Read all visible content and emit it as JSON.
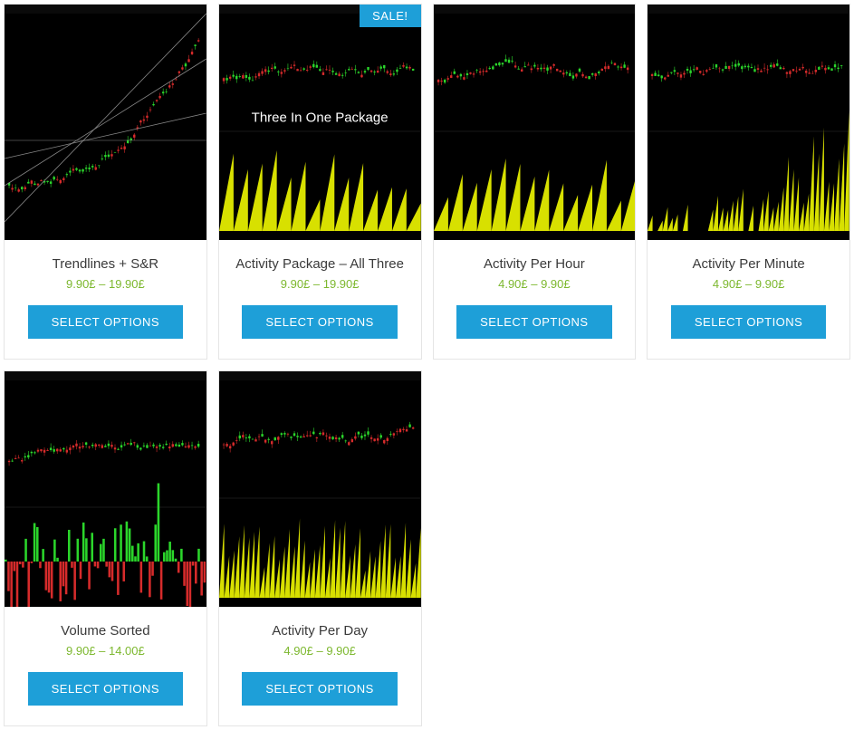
{
  "colors": {
    "accent": "#1e9fd8",
    "price": "#7db82f",
    "sale_bg": "#1e9fd8",
    "chart_bg": "#000000",
    "candle_up": "#2bd62b",
    "candle_down": "#d62b2b",
    "activity_fill": "#d8e000",
    "trendline": "#888888"
  },
  "button_label": "SELECT OPTIONS",
  "sale_label": "SALE!",
  "products": [
    {
      "title": "Trendlines + S&R",
      "price": "9.90£ – 19.90£",
      "thumb": "trendlines",
      "sale": false
    },
    {
      "title": "Activity Package – All Three",
      "price": "9.90£ – 19.90£",
      "thumb": "activity",
      "sale": true,
      "overlay": "Three In One Package"
    },
    {
      "title": "Activity Per Hour",
      "price": "4.90£ – 9.90£",
      "thumb": "activity",
      "sale": false
    },
    {
      "title": "Activity Per Minute",
      "price": "4.90£ – 9.90£",
      "thumb": "activity_sparse",
      "sale": false
    },
    {
      "title": "Volume Sorted",
      "price": "9.90£ – 14.00£",
      "thumb": "volume",
      "sale": false
    },
    {
      "title": "Activity Per Day",
      "price": "4.90£ – 9.90£",
      "thumb": "activity_dense",
      "sale": false
    }
  ]
}
